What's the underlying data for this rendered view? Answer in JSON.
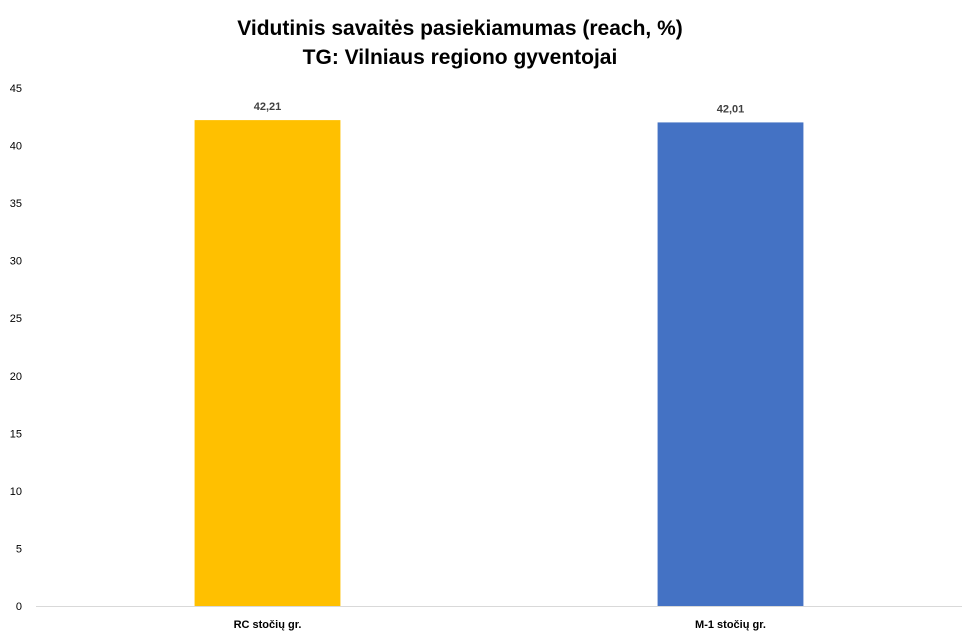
{
  "chart_data": {
    "type": "bar",
    "title": "Vidutinis savaitės pasiekiamumas (reach, %)",
    "subtitle": "TG: Vilniaus regiono gyventojai",
    "categories": [
      "RC stočių gr.",
      "M-1 stočių gr."
    ],
    "values": [
      42.21,
      42.01
    ],
    "value_labels": [
      "42,21",
      "42,01"
    ],
    "colors": [
      "#FFC000",
      "#4472C4"
    ],
    "xlabel": "",
    "ylabel": "",
    "ylim": [
      0,
      45
    ],
    "yticks": [
      0,
      5,
      10,
      15,
      20,
      25,
      30,
      35,
      40,
      45
    ],
    "grid": false,
    "legend": "none"
  }
}
